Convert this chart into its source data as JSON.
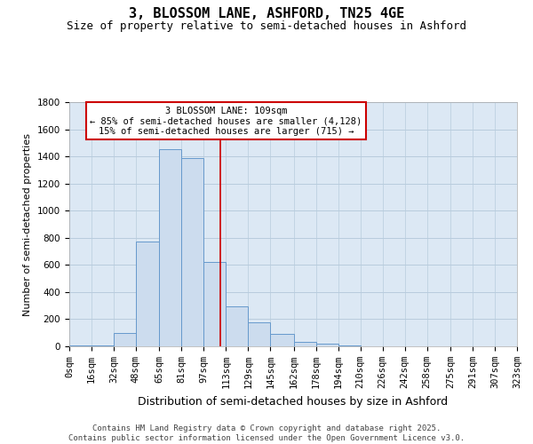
{
  "title": "3, BLOSSOM LANE, ASHFORD, TN25 4GE",
  "subtitle": "Size of property relative to semi-detached houses in Ashford",
  "xlabel": "Distribution of semi-detached houses by size in Ashford",
  "ylabel": "Number of semi-detached properties",
  "bin_edges": [
    0,
    16,
    32,
    48,
    65,
    81,
    97,
    113,
    129,
    145,
    162,
    178,
    194,
    210,
    226,
    242,
    258,
    275,
    291,
    307,
    323
  ],
  "bin_labels": [
    "0sqm",
    "16sqm",
    "32sqm",
    "48sqm",
    "65sqm",
    "81sqm",
    "97sqm",
    "113sqm",
    "129sqm",
    "145sqm",
    "162sqm",
    "178sqm",
    "194sqm",
    "210sqm",
    "226sqm",
    "242sqm",
    "258sqm",
    "275sqm",
    "291sqm",
    "307sqm",
    "323sqm"
  ],
  "values": [
    5,
    5,
    100,
    770,
    1450,
    1390,
    620,
    295,
    175,
    90,
    30,
    18,
    5,
    0,
    0,
    0,
    0,
    0,
    0,
    0
  ],
  "bar_color": "#ccdcee",
  "bar_edge_color": "#6699cc",
  "grid_color": "#b8ccdd",
  "background_color": "#dce8f4",
  "vline_x": 109,
  "vline_color": "#cc0000",
  "annotation_text": "3 BLOSSOM LANE: 109sqm\n← 85% of semi-detached houses are smaller (4,128)\n15% of semi-detached houses are larger (715) →",
  "annotation_box_facecolor": "#ffffff",
  "annotation_box_edgecolor": "#cc0000",
  "ylim": [
    0,
    1800
  ],
  "yticks": [
    0,
    200,
    400,
    600,
    800,
    1000,
    1200,
    1400,
    1600,
    1800
  ],
  "footer_text": "Contains HM Land Registry data © Crown copyright and database right 2025.\nContains public sector information licensed under the Open Government Licence v3.0.",
  "title_fontsize": 11,
  "subtitle_fontsize": 9,
  "ylabel_fontsize": 8,
  "xlabel_fontsize": 9,
  "tick_fontsize": 7.5,
  "annotation_fontsize": 7.5,
  "footer_fontsize": 6.5
}
